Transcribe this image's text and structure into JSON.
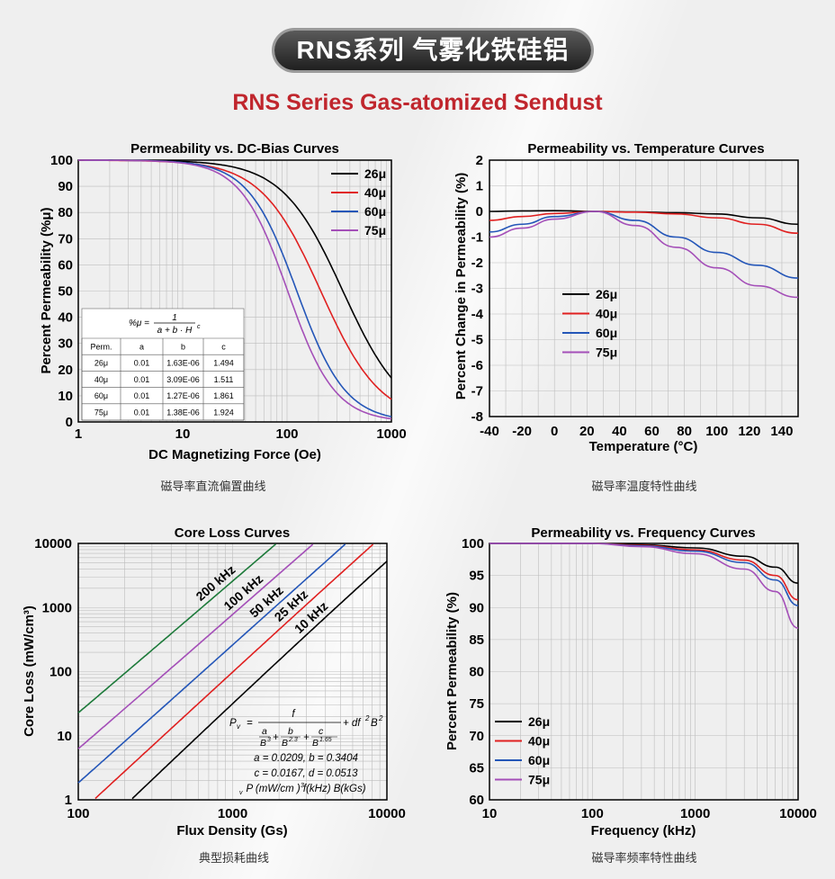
{
  "header": {
    "title_cn": "RNS系列 气雾化铁硅铝",
    "subtitle_en": "RNS Series Gas-atomized Sendust"
  },
  "captions": {
    "dcbias": "磁导率直流偏置曲线",
    "temperature": "磁导率温度特性曲线",
    "coreloss": "典型损耗曲线",
    "frequency": "磁导率频率特性曲线"
  },
  "colors": {
    "26": "#000000",
    "40": "#e02020",
    "60": "#2456b8",
    "75": "#a44fb8",
    "200k": "#1d7a3a"
  },
  "chart_data": [
    {
      "id": "dcbias",
      "type": "line",
      "title": "Permeability vs. DC-Bias Curves",
      "xlabel": "DC Magnetizing Force (Oe)",
      "ylabel": "Percent Permeability (%μ)",
      "xscale": "log",
      "xlim": [
        1,
        1000
      ],
      "ylim": [
        0,
        100
      ],
      "xticks": [
        "1",
        "10",
        "100",
        "1000"
      ],
      "yticks": [
        "0",
        "10",
        "20",
        "30",
        "40",
        "50",
        "60",
        "70",
        "80",
        "90",
        "100"
      ],
      "legend": [
        "26μ",
        "40μ",
        "60μ",
        "75μ"
      ],
      "formula": "%μ = 1 / (a + b·H^c)",
      "table": {
        "headers": [
          "Perm.",
          "a",
          "b",
          "c"
        ],
        "rows": [
          [
            "26μ",
            "0.01",
            "1.63E-06",
            "1.494"
          ],
          [
            "40μ",
            "0.01",
            "3.09E-06",
            "1.511"
          ],
          [
            "60μ",
            "0.01",
            "1.27E-06",
            "1.861"
          ],
          [
            "75μ",
            "0.01",
            "1.38E-06",
            "1.924"
          ]
        ]
      },
      "series": [
        {
          "name": "26μ",
          "a": 0.01,
          "b": 1.63e-06,
          "c": 1.494
        },
        {
          "name": "40μ",
          "a": 0.01,
          "b": 3.09e-06,
          "c": 1.511
        },
        {
          "name": "60μ",
          "a": 0.01,
          "b": 1.27e-06,
          "c": 1.861
        },
        {
          "name": "75μ",
          "a": 0.01,
          "b": 1.38e-06,
          "c": 1.924
        }
      ]
    },
    {
      "id": "temperature",
      "type": "line",
      "title": "Permeability vs. Temperature Curves",
      "xlabel": "Temperature (°C)",
      "ylabel": "Percent Change in Permeability (%)",
      "xlim": [
        -40,
        150
      ],
      "ylim": [
        -8,
        2
      ],
      "xticks": [
        "-40",
        "-20",
        "0",
        "20",
        "40",
        "60",
        "80",
        "100",
        "120",
        "140"
      ],
      "yticks": [
        "2",
        "1",
        "0",
        "-1",
        "-2",
        "-3",
        "-4",
        "-5",
        "-6",
        "-7",
        "-8"
      ],
      "legend": [
        "26μ",
        "40μ",
        "60μ",
        "75μ"
      ],
      "x": [
        -40,
        -20,
        0,
        25,
        50,
        75,
        100,
        125,
        150
      ],
      "series": [
        {
          "name": "26μ",
          "values": [
            0,
            0.02,
            0.03,
            0,
            -0.02,
            -0.05,
            -0.1,
            -0.25,
            -0.5
          ]
        },
        {
          "name": "40μ",
          "values": [
            -0.35,
            -0.2,
            -0.08,
            0,
            -0.03,
            -0.1,
            -0.25,
            -0.5,
            -0.85
          ]
        },
        {
          "name": "60μ",
          "values": [
            -0.8,
            -0.5,
            -0.2,
            0,
            -0.35,
            -1.0,
            -1.6,
            -2.1,
            -2.6
          ]
        },
        {
          "name": "75μ",
          "values": [
            -1.0,
            -0.65,
            -0.3,
            0,
            -0.55,
            -1.4,
            -2.2,
            -2.9,
            -3.35
          ]
        }
      ]
    },
    {
      "id": "coreloss",
      "type": "line",
      "title": "Core Loss Curves",
      "xlabel": "Flux Density (Gs)",
      "ylabel": "Core Loss (mW/cm³)",
      "xscale": "log",
      "yscale": "log",
      "xlim": [
        100,
        10000
      ],
      "ylim": [
        1,
        10000
      ],
      "xticks": [
        "100",
        "1000",
        "10000"
      ],
      "yticks": [
        "1",
        "10",
        "100",
        "1000",
        "10000"
      ],
      "formula_lines": [
        "a = 0.0209, b = 0.3404",
        "c = 0.0167, d = 0.0513",
        "P (mW/cm ) f(kHz) B(kGs)"
      ],
      "formula_parts": [
        "P",
        "v",
        "=",
        "f",
        "a",
        "B",
        "3",
        "+",
        "b",
        "B",
        "2.3",
        "+",
        "c",
        "B",
        "1.65",
        "+ df",
        "2",
        "B",
        "2",
        "v",
        "3"
      ],
      "params": {
        "a": 0.0209,
        "b": 0.3404,
        "c": 0.0167,
        "d": 0.0513
      },
      "series": [
        {
          "name": "200 kHz",
          "f": 200
        },
        {
          "name": "100 kHz",
          "f": 100
        },
        {
          "name": "50 kHz",
          "f": 50
        },
        {
          "name": "25 kHz",
          "f": 25
        },
        {
          "name": "10 kHz",
          "f": 10
        }
      ]
    },
    {
      "id": "frequency",
      "type": "line",
      "title": "Permeability vs. Frequency Curves",
      "xlabel": "Frequency (kHz)",
      "ylabel": "Percent Permeability (%)",
      "xscale": "log",
      "xlim": [
        10,
        10000
      ],
      "ylim": [
        60,
        100
      ],
      "xticks": [
        "10",
        "100",
        "1000",
        "10000"
      ],
      "yticks": [
        "60",
        "65",
        "70",
        "75",
        "80",
        "85",
        "90",
        "95",
        "100"
      ],
      "legend": [
        "26μ",
        "40μ",
        "60μ",
        "75μ"
      ],
      "x": [
        10,
        100,
        300,
        1000,
        3000,
        6000,
        10000
      ],
      "series": [
        {
          "name": "26μ",
          "values": [
            100,
            100,
            99.8,
            99.3,
            98,
            96.3,
            93.8
          ]
        },
        {
          "name": "40μ",
          "values": [
            100,
            100,
            99.7,
            99,
            97.4,
            95,
            91.2
          ]
        },
        {
          "name": "60μ",
          "values": [
            100,
            100,
            99.6,
            98.8,
            97,
            94.3,
            90.3
          ]
        },
        {
          "name": "75μ",
          "values": [
            100,
            100,
            99.5,
            98.4,
            96,
            92.5,
            86.8
          ]
        }
      ]
    }
  ]
}
